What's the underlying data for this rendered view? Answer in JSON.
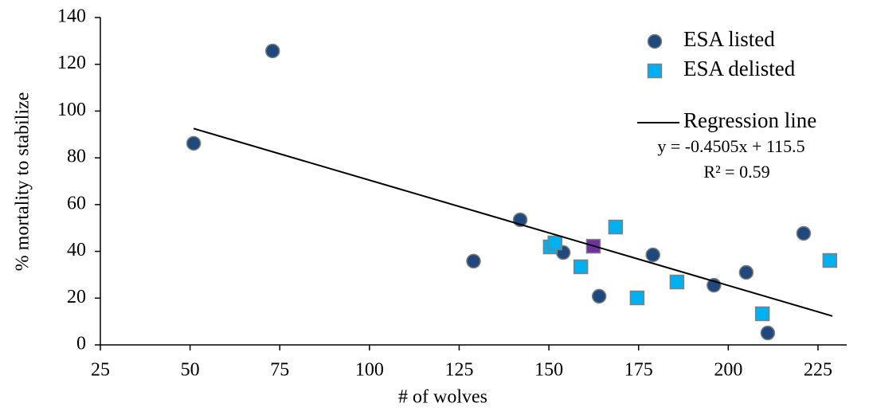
{
  "chart_data": {
    "type": "scatter",
    "x_label": "# of wolves",
    "y_label": "% mortality to stabilize",
    "xlim": [
      25,
      233
    ],
    "ylim": [
      0,
      140
    ],
    "xticks": [
      25,
      50,
      75,
      100,
      125,
      150,
      175,
      200,
      225
    ],
    "yticks": [
      0,
      20,
      40,
      60,
      80,
      100,
      120,
      140
    ],
    "series": [
      {
        "name": "ESA listed",
        "marker": "circle",
        "color": "#1f497d",
        "x": [
          51,
          73,
          129,
          142,
          154,
          164,
          179,
          196,
          205,
          211,
          221
        ],
        "values": [
          86.2,
          125.7,
          35.8,
          53.5,
          39.5,
          20.8,
          38.5,
          25.5,
          31,
          5.1,
          47.7
        ]
      },
      {
        "name": "ESA delisted",
        "marker": "square",
        "color": "#00b0f0",
        "x": [
          150.4,
          151.7,
          158.9,
          168.6,
          174.6,
          185.7,
          209.5,
          228.3
        ],
        "values": [
          41.9,
          43.6,
          33.4,
          50.4,
          20.1,
          26.9,
          13.3,
          36.1
        ]
      },
      {
        "marker": "square",
        "color": "#7030a0",
        "x": [
          162.4
        ],
        "values": [
          42.2
        ]
      },
      {
        "name": "Regression line",
        "marker": "line",
        "color": "#000000",
        "x": [
          51,
          229
        ],
        "values": [
          92.52,
          12.34
        ]
      }
    ],
    "annotations": [
      "y = -0.4505x + 115.5",
      "R² = 0.59"
    ]
  }
}
